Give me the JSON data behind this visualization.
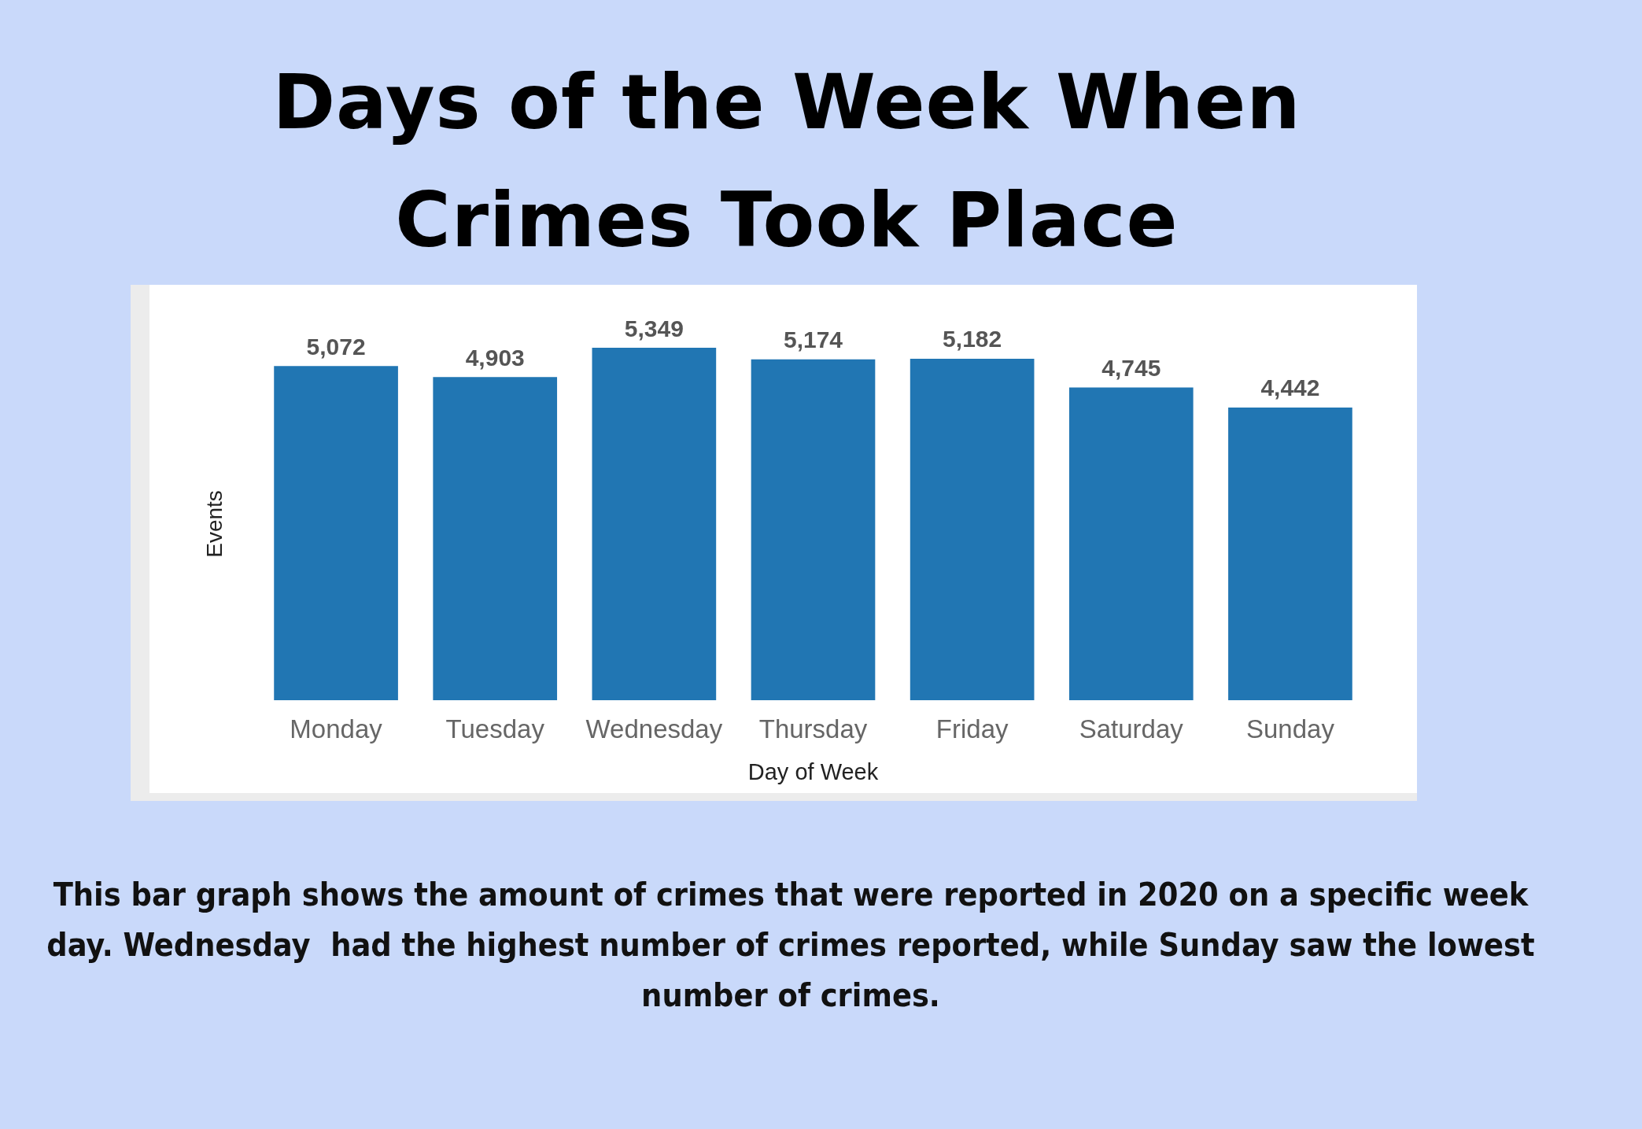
{
  "chart_data": {
    "type": "bar",
    "title": "Days of the Week When Crimes Took Place",
    "categories": [
      "Monday",
      "Tuesday",
      "Wednesday",
      "Thursday",
      "Friday",
      "Saturday",
      "Sunday"
    ],
    "values": [
      5072,
      4903,
      5349,
      5174,
      5182,
      4745,
      4442
    ],
    "value_labels": [
      "5,072",
      "4,903",
      "5,349",
      "5,174",
      "5,182",
      "4,745",
      "4,442"
    ],
    "color": "#2176b3",
    "xlabel": "Day of Week",
    "ylabel": "Events",
    "annotations": [
      "This bar graph shows the amount of crimes that were reported in 2020 on a specific week day. Wednesday  had the highest number of crimes reported, while Sunday saw the lowest number of crimes."
    ]
  }
}
